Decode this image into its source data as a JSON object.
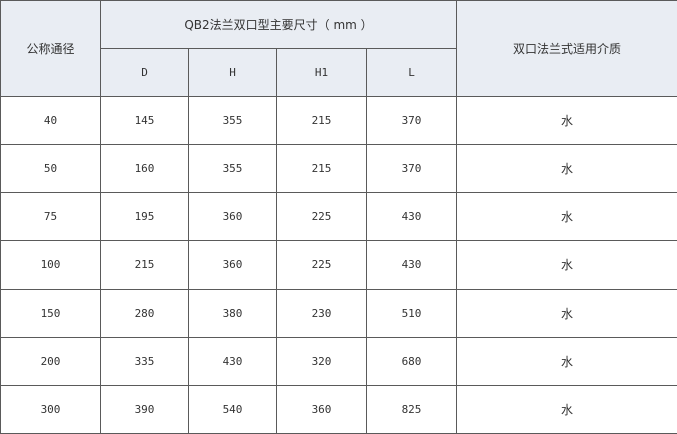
{
  "header": {
    "nominal_diameter": "公称通径",
    "dimensions_title": "QB2法兰双口型主要尺寸（ mm ）",
    "medium": "双口法兰式适用介质",
    "columns": [
      "D",
      "H",
      "H1",
      "L"
    ]
  },
  "rows": [
    {
      "dn": "40",
      "D": "145",
      "H": "355",
      "H1": "215",
      "L": "370",
      "medium": "水"
    },
    {
      "dn": "50",
      "D": "160",
      "H": "355",
      "H1": "215",
      "L": "370",
      "medium": "水"
    },
    {
      "dn": "75",
      "D": "195",
      "H": "360",
      "H1": "225",
      "L": "430",
      "medium": "水"
    },
    {
      "dn": "100",
      "D": "215",
      "H": "360",
      "H1": "225",
      "L": "430",
      "medium": "水"
    },
    {
      "dn": "150",
      "D": "280",
      "H": "380",
      "H1": "230",
      "L": "510",
      "medium": "水"
    },
    {
      "dn": "200",
      "D": "335",
      "H": "430",
      "H1": "320",
      "L": "680",
      "medium": "水"
    },
    {
      "dn": "300",
      "D": "390",
      "H": "540",
      "H1": "360",
      "L": "825",
      "medium": "水"
    }
  ]
}
